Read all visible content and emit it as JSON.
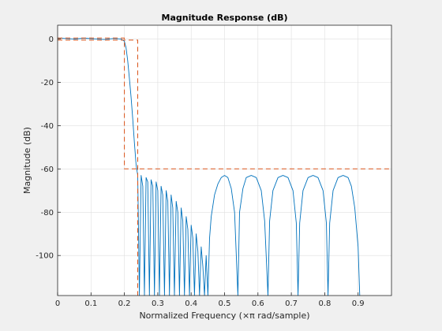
{
  "chart_data": {
    "type": "line",
    "title": "Magnitude Response (dB)",
    "xlabel": "Normalized Frequency (×π rad/sample)",
    "ylabel": "Magnitude (dB)",
    "xlim": [
      0,
      1
    ],
    "ylim": [
      -118.5,
      6.4
    ],
    "xticks": [
      "0",
      "0.1",
      "0.2",
      "0.3",
      "0.4",
      "0.5",
      "0.6",
      "0.7",
      "0.8",
      "0.9"
    ],
    "yticks": [
      "0",
      "-20",
      "-40",
      "-60",
      "-80",
      "-100"
    ],
    "grid": true,
    "legend": "none",
    "colors": {
      "response": "#0072bd",
      "mask": "#d95319",
      "axes": "#262626",
      "grid": "#dfdfdf",
      "plot_bg": "#ffffff",
      "figure_bg": "#f0f0f0"
    },
    "series": [
      {
        "style": "solid",
        "points": [
          [
            0.0,
            0.5
          ],
          [
            0.02,
            0.3
          ],
          [
            0.05,
            0.0
          ],
          [
            0.08,
            0.4
          ],
          [
            0.11,
            0.1
          ],
          [
            0.14,
            -0.2
          ],
          [
            0.17,
            0.3
          ],
          [
            0.19,
            0.0
          ],
          [
            0.2,
            -1
          ],
          [
            0.205,
            -4
          ],
          [
            0.21,
            -10
          ],
          [
            0.215,
            -18
          ],
          [
            0.22,
            -27
          ],
          [
            0.225,
            -37
          ],
          [
            0.23,
            -48
          ],
          [
            0.235,
            -58
          ],
          [
            0.24,
            -63
          ],
          [
            0.245,
            -118.5
          ],
          [
            0.25,
            -63
          ],
          [
            0.255,
            -68
          ],
          [
            0.26,
            -118.5
          ],
          [
            0.265,
            -64
          ],
          [
            0.27,
            -66
          ],
          [
            0.275,
            -118.5
          ],
          [
            0.28,
            -65
          ],
          [
            0.285,
            -68
          ],
          [
            0.29,
            -118.5
          ],
          [
            0.295,
            -66
          ],
          [
            0.3,
            -70
          ],
          [
            0.305,
            -118.5
          ],
          [
            0.31,
            -68
          ],
          [
            0.315,
            -72
          ],
          [
            0.32,
            -118.5
          ],
          [
            0.325,
            -70
          ],
          [
            0.33,
            -75
          ],
          [
            0.335,
            -118.5
          ],
          [
            0.34,
            -72
          ],
          [
            0.345,
            -78
          ],
          [
            0.35,
            -118.5
          ],
          [
            0.355,
            -75
          ],
          [
            0.36,
            -80
          ],
          [
            0.365,
            -118.5
          ],
          [
            0.37,
            -78
          ],
          [
            0.375,
            -84
          ],
          [
            0.38,
            -118.5
          ],
          [
            0.385,
            -82
          ],
          [
            0.39,
            -88
          ],
          [
            0.395,
            -118.5
          ],
          [
            0.4,
            -86
          ],
          [
            0.405,
            -92
          ],
          [
            0.41,
            -118.5
          ],
          [
            0.415,
            -90
          ],
          [
            0.42,
            -98
          ],
          [
            0.425,
            -118.5
          ],
          [
            0.43,
            -96
          ],
          [
            0.435,
            -105
          ],
          [
            0.44,
            -118.5
          ],
          [
            0.445,
            -100
          ],
          [
            0.45,
            -118.5
          ],
          [
            0.455,
            -92
          ],
          [
            0.46,
            -82
          ],
          [
            0.47,
            -72
          ],
          [
            0.48,
            -67
          ],
          [
            0.49,
            -64
          ],
          [
            0.5,
            -63
          ],
          [
            0.51,
            -64
          ],
          [
            0.52,
            -69
          ],
          [
            0.53,
            -80
          ],
          [
            0.54,
            -118.5
          ],
          [
            0.545,
            -80
          ],
          [
            0.555,
            -69
          ],
          [
            0.565,
            -64
          ],
          [
            0.58,
            -63
          ],
          [
            0.595,
            -64
          ],
          [
            0.61,
            -70
          ],
          [
            0.62,
            -84
          ],
          [
            0.63,
            -118.5
          ],
          [
            0.635,
            -84
          ],
          [
            0.645,
            -70
          ],
          [
            0.66,
            -64
          ],
          [
            0.675,
            -63
          ],
          [
            0.69,
            -64
          ],
          [
            0.705,
            -70
          ],
          [
            0.715,
            -85
          ],
          [
            0.72,
            -118.5
          ],
          [
            0.725,
            -85
          ],
          [
            0.735,
            -70
          ],
          [
            0.75,
            -64
          ],
          [
            0.765,
            -63
          ],
          [
            0.78,
            -64
          ],
          [
            0.795,
            -70
          ],
          [
            0.805,
            -85
          ],
          [
            0.81,
            -118.5
          ],
          [
            0.815,
            -85
          ],
          [
            0.825,
            -70
          ],
          [
            0.84,
            -64
          ],
          [
            0.855,
            -63
          ],
          [
            0.87,
            -64
          ],
          [
            0.88,
            -68
          ],
          [
            0.89,
            -78
          ],
          [
            0.9,
            -96
          ],
          [
            0.905,
            -118.5
          ]
        ]
      },
      {
        "style": "dashed",
        "points": [
          [
            0,
            0.5
          ],
          [
            0.2,
            0.5
          ],
          [
            0.2,
            -60
          ],
          [
            1,
            -60
          ]
        ]
      },
      {
        "style": "dashed",
        "points": [
          [
            0,
            -0.5
          ],
          [
            0.24,
            -0.5
          ],
          [
            0.24,
            -118.5
          ]
        ]
      }
    ]
  }
}
